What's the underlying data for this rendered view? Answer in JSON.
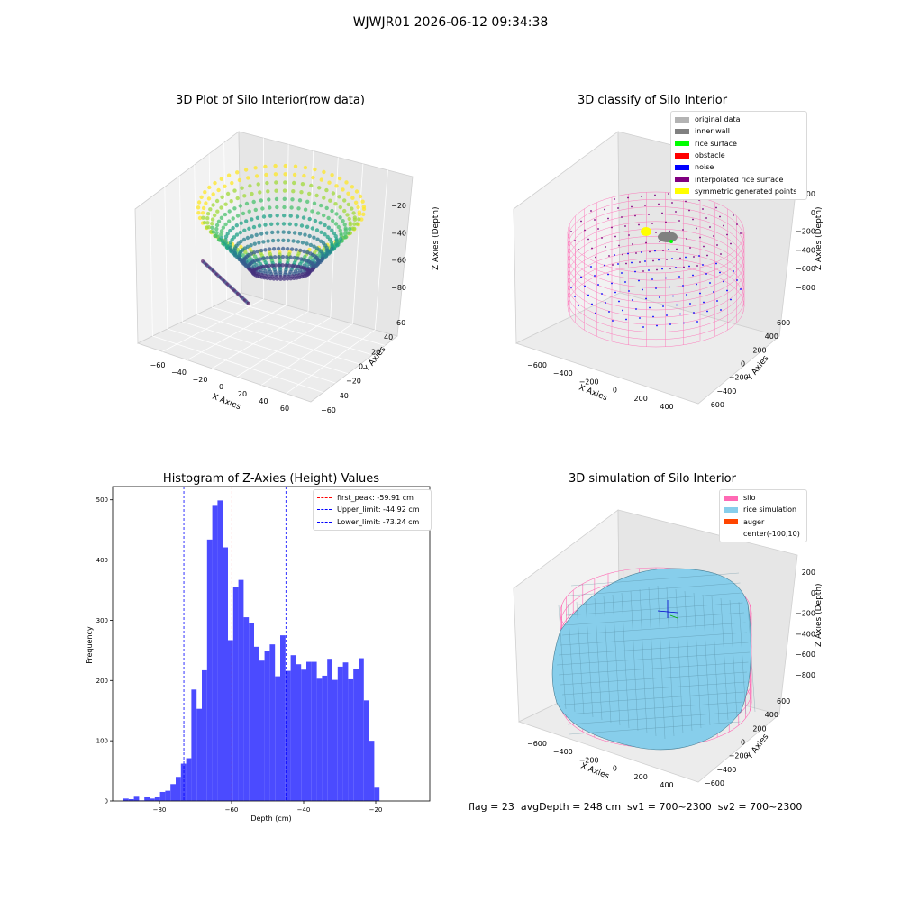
{
  "figure": {
    "suptitle": "WJWJR01 2026-06-12 09:34:38",
    "footer": "flag = 23  avgDepth = 248 cm  sv1 = 700~2300  sv2 = 700~2300"
  },
  "colors": {
    "histogram_bar": "#4b4bff",
    "first_peak_line": "#ff0000",
    "limit_lines": "#0000ff",
    "silo_wire": "#ff69b4",
    "rice_surface": "#87ceeb",
    "original_data": "#b3b3b3",
    "inner_wall": "#808080",
    "rice_surface_class": "#00ff00",
    "obstacle": "#ff0000",
    "noise": "#0000ff",
    "interpolated": "#800080",
    "symmetric": "#ffff00",
    "auger": "#ff4500"
  },
  "chart_data": [
    {
      "type": "scatter",
      "subtype": "3d",
      "title": "3D Plot of Silo Interior(row data)",
      "xlabel": "X Axies",
      "ylabel": "Y Axies",
      "zlabel": "Z Axies (Depth)",
      "x_ticks": [
        "−60",
        "−40",
        "−20",
        "0",
        "20",
        "40",
        "60"
      ],
      "y_ticks": [
        "−60",
        "−40",
        "−20",
        "0",
        "20",
        "40",
        "60"
      ],
      "z_ticks": [
        "−20",
        "−40",
        "−60",
        "−80"
      ],
      "colormap": "viridis"
    },
    {
      "type": "scatter",
      "subtype": "3d",
      "title": "3D classify of Silo Interior",
      "xlabel": "X Axies",
      "ylabel": "Y Axies",
      "zlabel": "Z Axies (Depth)",
      "x_ticks": [
        "−600",
        "−400",
        "−200",
        "0",
        "200",
        "400"
      ],
      "y_ticks": [
        "−600",
        "−400",
        "−200",
        "0",
        "200",
        "400",
        "600"
      ],
      "z_ticks": [
        "200",
        "0",
        "−200",
        "−400",
        "−600",
        "−800"
      ],
      "legend": [
        {
          "label": "original data",
          "color": "#b3b3b3"
        },
        {
          "label": "inner wall",
          "color": "#808080"
        },
        {
          "label": "rice surface",
          "color": "#00ff00"
        },
        {
          "label": "obstacle",
          "color": "#ff0000"
        },
        {
          "label": "noise",
          "color": "#0000ff"
        },
        {
          "label": "interpolated rice surface",
          "color": "#800080"
        },
        {
          "label": "symmetric generated points",
          "color": "#ffff00"
        }
      ]
    },
    {
      "type": "bar",
      "subtype": "histogram",
      "title": "Histogram of Z-Axies (Height) Values",
      "xlabel": "Depth (cm)",
      "ylabel": "Frequency",
      "xlim": [
        -93,
        -5
      ],
      "ylim": [
        0,
        522
      ],
      "x_ticks": [
        {
          "v": -80,
          "label": "−80"
        },
        {
          "v": -60,
          "label": "−60"
        },
        {
          "v": -40,
          "label": "−40"
        },
        {
          "v": -20,
          "label": "−20"
        }
      ],
      "y_ticks": [
        0,
        100,
        200,
        300,
        400,
        500
      ],
      "bin_start": -90,
      "bin_width": 1.45,
      "values": [
        4,
        3,
        7,
        1,
        6,
        4,
        6,
        15,
        17,
        28,
        40,
        62,
        71,
        185,
        153,
        217,
        434,
        490,
        499,
        421,
        267,
        355,
        367,
        305,
        296,
        256,
        233,
        249,
        260,
        207,
        275,
        216,
        242,
        227,
        218,
        231,
        231,
        203,
        208,
        236,
        201,
        223,
        230,
        202,
        219,
        237,
        167,
        100,
        22
      ],
      "vlines": [
        {
          "label": "first_peak: -59.91 cm",
          "x": -59.91,
          "color": "#ff0000"
        },
        {
          "label": "Upper_limit: -44.92 cm",
          "x": -44.92,
          "color": "#0000ff"
        },
        {
          "label": "Lower_limit: -73.24 cm",
          "x": -73.24,
          "color": "#0000ff"
        }
      ]
    },
    {
      "type": "area",
      "subtype": "3d-surface",
      "title": "3D simulation of Silo Interior",
      "xlabel": "X Axies",
      "ylabel": "Y Axies",
      "zlabel": "Z Axies (Depth)",
      "x_ticks": [
        "−600",
        "−400",
        "−200",
        "0",
        "200",
        "400"
      ],
      "y_ticks": [
        "−600",
        "−400",
        "−200",
        "0",
        "200",
        "400",
        "600"
      ],
      "z_ticks": [
        "200",
        "0",
        "−200",
        "−400",
        "−600",
        "−800"
      ],
      "legend": [
        {
          "label": "silo",
          "color": "#ff69b4"
        },
        {
          "label": "rice simulation",
          "color": "#87ceeb"
        },
        {
          "label": "auger",
          "color": "#ff4500"
        },
        {
          "label": "center(-100,10)",
          "color": ""
        }
      ]
    }
  ]
}
